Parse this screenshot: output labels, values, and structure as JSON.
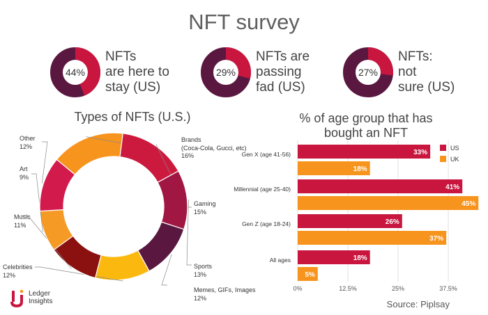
{
  "title": "NFT survey",
  "stats": [
    {
      "value": 44,
      "label_lines": [
        "NFTs",
        "are here to",
        "stay (US)"
      ]
    },
    {
      "value": 29,
      "label_lines": [
        "NFTs are",
        "passing",
        "fad (US)"
      ]
    },
    {
      "value": 27,
      "label_lines": [
        "NFTs:",
        "not",
        "sure (US)"
      ]
    }
  ],
  "colors": {
    "donut_dark": "#5a1840",
    "accent_red": "#c8163f",
    "accent_orange": "#f7941d",
    "grid": "#d9d9d9"
  },
  "chart_data": [
    {
      "type": "pie",
      "title": "Types of NFTs (U.S.)",
      "labels": [
        "Brands (Coca-Cola, Gucci, etc)",
        "Gaming",
        "Sports",
        "Memes, GIFs, Images",
        "Celebrities",
        "Music",
        "Art",
        "Other"
      ],
      "label_lines": [
        [
          "Brands",
          "(Coca-Cola, Gucci, etc)",
          "16%"
        ],
        [
          "Gaming",
          "15%"
        ],
        [
          "Sports",
          "13%"
        ],
        [
          "Memes, GIFs, Images",
          "12%"
        ],
        [
          "Celebrities",
          "12%"
        ],
        [
          "Music",
          "11%"
        ],
        [
          "Art",
          "9%"
        ],
        [
          "Other",
          "12%"
        ]
      ],
      "values": [
        16,
        15,
        13,
        12,
        12,
        11,
        9,
        12
      ],
      "colors": [
        "#f7941d",
        "#cc1a3e",
        "#a11744",
        "#5a1840",
        "#fbb90f",
        "#8b1010",
        "#f59a25",
        "#d31a4d"
      ],
      "hole": true
    },
    {
      "type": "bar",
      "orientation": "horizontal",
      "title_lines": [
        "% of age group that has",
        "bought an NFT"
      ],
      "categories": [
        "Gen X (age 41-56)",
        "Millennial (age 25-40)",
        "Gen Z (age 18-24)",
        "All ages"
      ],
      "series": [
        {
          "name": "US",
          "values": [
            33,
            41,
            26,
            18
          ],
          "color": "#c8163f"
        },
        {
          "name": "UK",
          "values": [
            18,
            45,
            37,
            5
          ],
          "color": "#f7941d"
        }
      ],
      "xticks": [
        "0%",
        "12.5%",
        "25%",
        "37.5%"
      ],
      "xtick_values": [
        0,
        12.5,
        25,
        37.5
      ],
      "xlim": [
        0,
        46
      ],
      "grid": true,
      "legend": "top-right"
    }
  ],
  "source": "Source: Piplsay",
  "logo": {
    "lines": [
      "Ledger",
      "Insights"
    ]
  }
}
